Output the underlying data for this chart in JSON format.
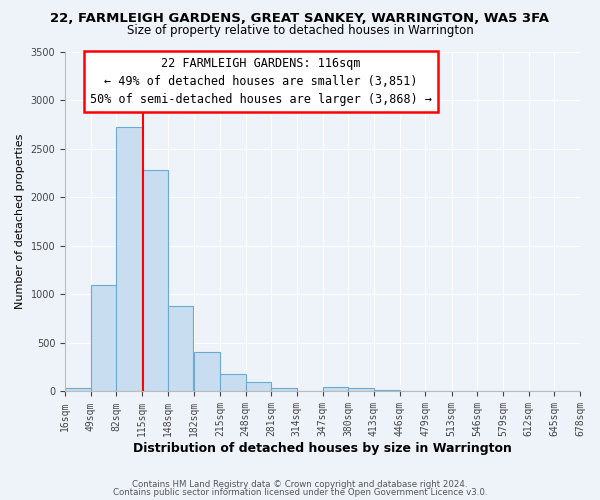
{
  "title": "22, FARMLEIGH GARDENS, GREAT SANKEY, WARRINGTON, WA5 3FA",
  "subtitle": "Size of property relative to detached houses in Warrington",
  "xlabel": "Distribution of detached houses by size in Warrington",
  "ylabel": "Number of detached properties",
  "bar_color": "#c9ddf0",
  "bar_edge_color": "#6aaad4",
  "bin_edges": [
    16,
    49,
    82,
    115,
    148,
    182,
    215,
    248,
    281,
    314,
    347,
    380,
    413,
    446,
    479,
    513,
    546,
    579,
    612,
    645,
    678
  ],
  "bin_labels": [
    "16sqm",
    "49sqm",
    "82sqm",
    "115sqm",
    "148sqm",
    "182sqm",
    "215sqm",
    "248sqm",
    "281sqm",
    "314sqm",
    "347sqm",
    "380sqm",
    "413sqm",
    "446sqm",
    "479sqm",
    "513sqm",
    "546sqm",
    "579sqm",
    "612sqm",
    "645sqm",
    "678sqm"
  ],
  "bar_heights": [
    40,
    1100,
    2720,
    2280,
    880,
    410,
    185,
    95,
    35,
    10,
    50,
    35,
    20,
    3,
    2,
    2,
    1,
    0,
    0,
    0
  ],
  "vline_x": 116,
  "vline_color": "red",
  "annotation_line1": "22 FARMLEIGH GARDENS: 116sqm",
  "annotation_line2": "← 49% of detached houses are smaller (3,851)",
  "annotation_line3": "50% of semi-detached houses are larger (3,868) →",
  "ylim": [
    0,
    3500
  ],
  "yticks": [
    0,
    500,
    1000,
    1500,
    2000,
    2500,
    3000,
    3500
  ],
  "footnote1": "Contains HM Land Registry data © Crown copyright and database right 2024.",
  "footnote2": "Contains public sector information licensed under the Open Government Licence v3.0.",
  "background_color": "#eef3fa",
  "grid_color": "#d8e4f0",
  "title_fontsize": 9.5,
  "subtitle_fontsize": 8.5
}
